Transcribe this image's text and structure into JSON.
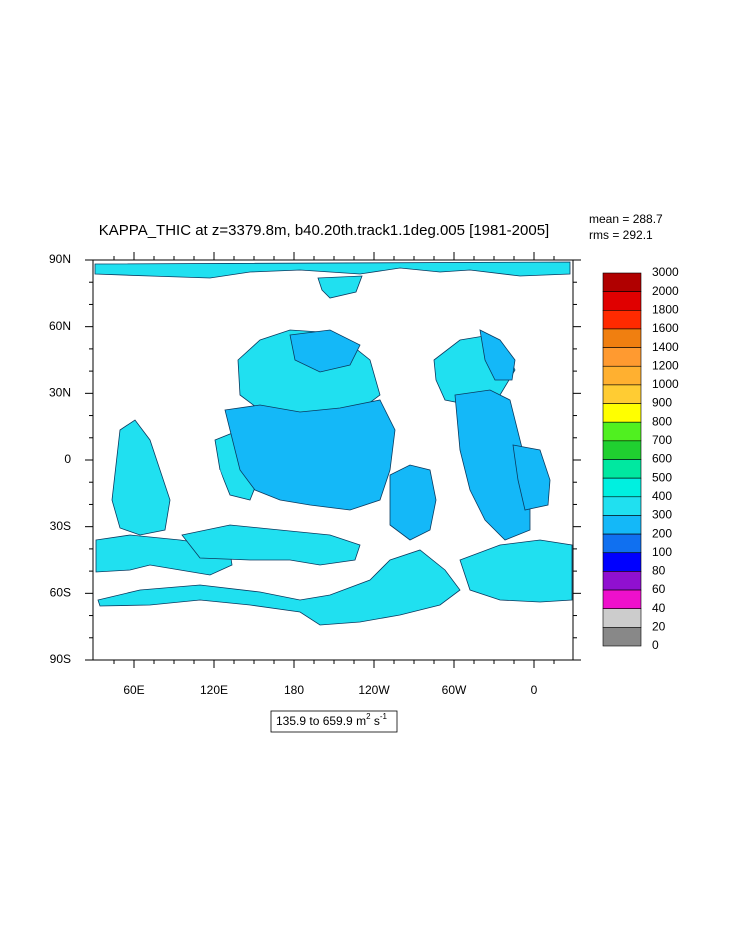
{
  "title": "KAPPA_THIC at z=3379.8m, b40.20th.track1.1deg.005 [1981-2005]",
  "stats": {
    "mean": "mean = 288.7",
    "rms": "rms = 292.1"
  },
  "lat_labels": [
    "90N",
    "60N",
    "30N",
    "0",
    "30S",
    "60S",
    "90S"
  ],
  "lon_labels": [
    "60E",
    "120E",
    "180",
    "120W",
    "60W",
    "0"
  ],
  "colorbar": {
    "labels": [
      "3000",
      "2000",
      "1800",
      "1600",
      "1400",
      "1200",
      "1000",
      "900",
      "800",
      "700",
      "600",
      "500",
      "400",
      "300",
      "200",
      "100",
      "80",
      "60",
      "40",
      "20",
      "0"
    ],
    "colors": [
      "#b00000",
      "#e00000",
      "#ff2a00",
      "#f07f10",
      "#ff9a30",
      "#ffb030",
      "#ffcc33",
      "#ffff00",
      "#50f020",
      "#20d030",
      "#00e8a0",
      "#00f0e0",
      "#20e0f0",
      "#14b8f8",
      "#1070f0",
      "#0000ff",
      "#9010d0",
      "#ee10cc",
      "#cccccc",
      "#888888"
    ]
  },
  "range_label": {
    "text": "135.9 to 659.9 m",
    "exp1": "2",
    "mid": " s",
    "exp2": "-1"
  }
}
